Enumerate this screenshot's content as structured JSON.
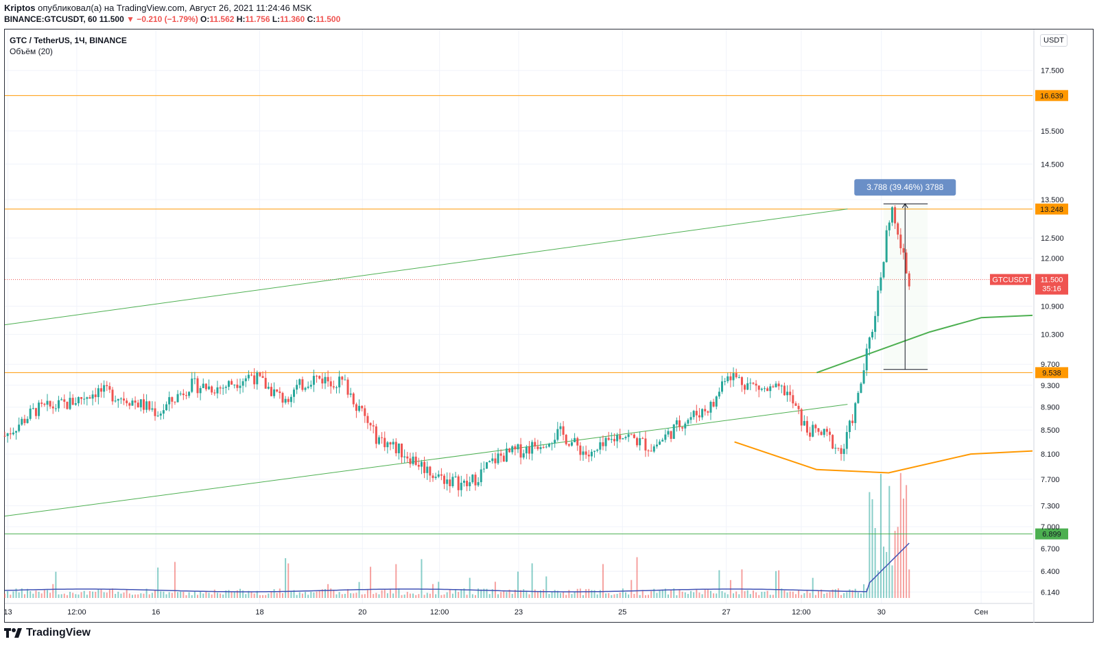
{
  "header": {
    "author": "Kriptos",
    "published_text": "опубликовал(а) на TradingView.com, Август 26, 2021 11:24:46 MSK",
    "symbol_line": "BINANCE:GTCUSDT, 60",
    "last": "11.500",
    "change": "▼ −0.210 (−1.79%)",
    "o_label": "O:",
    "o": "11.562",
    "h_label": "H:",
    "h": "11.756",
    "l_label": "L:",
    "l": "11.360",
    "c_label": "C:",
    "c": "11.500"
  },
  "legend": {
    "title": "GTC / TetherUS, 1Ч, BINANCE",
    "indicator": "Объём (20)"
  },
  "axis": {
    "unit": "USDT",
    "price_ticks": [
      "17.500",
      "15.500",
      "14.500",
      "13.500",
      "12.500",
      "12.000",
      "10.900",
      "10.300",
      "9.700",
      "9.300",
      "8.900",
      "8.500",
      "8.100",
      "7.700",
      "7.300",
      "7.000",
      "6.700",
      "6.400",
      "6.140"
    ],
    "time_ticks": [
      "13",
      "12:00",
      "16",
      "18",
      "20",
      "12:00",
      "23",
      "25",
      "27",
      "12:00",
      "30",
      "Сен"
    ]
  },
  "labels": {
    "symbol_tag": "GTCUSDT",
    "last_price": "11.500",
    "countdown": "35:16",
    "measure": "3.788 (39.46%) 3788"
  },
  "logo": {
    "text": "TradingView"
  },
  "colors": {
    "up": "#26a69a",
    "down": "#ef5350",
    "orange": "#ff9800",
    "green": "#4caf50",
    "blue_measure": "#6a8fc7",
    "vol_ma": "#3f51b5"
  },
  "chart_data": {
    "type": "candlestick",
    "symbol": "GTCUSDT",
    "interval": "60",
    "y_scale": "log",
    "ylim": [
      6.0,
      19.0
    ],
    "x_labels": [
      "13",
      "12:00",
      "16",
      "18",
      "20",
      "12:00",
      "23",
      "25",
      "27",
      "12:00",
      "30",
      "Сен"
    ],
    "horizontal_levels": [
      {
        "value": 16.639,
        "color": "#ff9800"
      },
      {
        "value": 13.248,
        "color": "#ff9800"
      },
      {
        "value": 9.538,
        "color": "#ff9800"
      },
      {
        "value": 6.899,
        "color": "#4caf50"
      }
    ],
    "last_price": 11.5,
    "measure": {
      "from": 9.6,
      "to": 13.388,
      "change": 3.788,
      "percent": 39.46,
      "ticks": 3788
    },
    "channel": [
      {
        "name": "",
        "from": [
          0,
          10.5
        ],
        "to": [
          0.82,
          13.25
        ]
      },
      {
        "name": "",
        "from": [
          0,
          7.15
        ],
        "to": [
          0.82,
          8.95
        ]
      }
    ],
    "projection_paths": [
      {
        "color": "#4caf50",
        "points": [
          [
            0.79,
            9.538
          ],
          [
            0.84,
            9.9
          ],
          [
            0.9,
            10.35
          ],
          [
            0.95,
            10.65
          ],
          [
            1.0,
            10.7
          ]
        ]
      },
      {
        "color": "#ff9800",
        "points": [
          [
            0.71,
            8.3
          ],
          [
            0.79,
            7.85
          ],
          [
            0.86,
            7.8
          ],
          [
            0.94,
            8.1
          ],
          [
            1.0,
            8.15
          ]
        ]
      }
    ],
    "price_path": [
      [
        0.0,
        8.4
      ],
      [
        0.03,
        8.85
      ],
      [
        0.06,
        8.95
      ],
      [
        0.09,
        9.2
      ],
      [
        0.12,
        9.05
      ],
      [
        0.15,
        8.8
      ],
      [
        0.18,
        9.3
      ],
      [
        0.21,
        9.25
      ],
      [
        0.24,
        9.5
      ],
      [
        0.27,
        9.05
      ],
      [
        0.3,
        9.45
      ],
      [
        0.33,
        9.35
      ],
      [
        0.36,
        8.4
      ],
      [
        0.39,
        8.1
      ],
      [
        0.42,
        7.75
      ],
      [
        0.45,
        7.6
      ],
      [
        0.48,
        8.05
      ],
      [
        0.51,
        8.2
      ],
      [
        0.54,
        8.45
      ],
      [
        0.57,
        8.05
      ],
      [
        0.6,
        8.45
      ],
      [
        0.63,
        8.2
      ],
      [
        0.66,
        8.65
      ],
      [
        0.69,
        8.95
      ],
      [
        0.702,
        9.55
      ],
      [
        0.72,
        9.35
      ],
      [
        0.74,
        9.2
      ],
      [
        0.76,
        9.2
      ],
      [
        0.78,
        8.5
      ],
      [
        0.8,
        8.4
      ],
      [
        0.815,
        8.1
      ],
      [
        0.83,
        9.05
      ],
      [
        0.845,
        10.5
      ],
      [
        0.855,
        12.0
      ],
      [
        0.862,
        13.3
      ],
      [
        0.87,
        12.4
      ],
      [
        0.88,
        11.5
      ]
    ]
  }
}
